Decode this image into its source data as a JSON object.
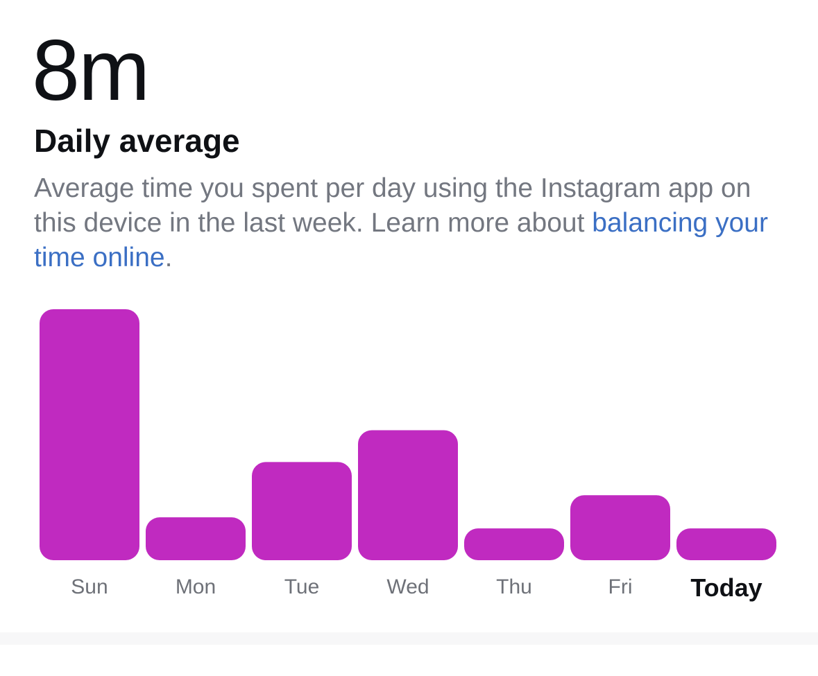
{
  "summary": {
    "value": "8m",
    "label": "Daily average",
    "description_prefix": "Average time you spent per day using the Instagram app on this device in the last week. Learn more about ",
    "link_text": "balancing your time online",
    "description_suffix": "."
  },
  "colors": {
    "bar": "#c02ac0",
    "label": "#6e7178",
    "today_label": "#0f1115",
    "link": "#3b6fc4"
  },
  "chart_data": {
    "type": "bar",
    "categories": [
      "Sun",
      "Mon",
      "Tue",
      "Wed",
      "Thu",
      "Fri",
      "Today"
    ],
    "values": [
      363,
      62,
      142,
      188,
      46,
      94,
      46
    ],
    "ylim": [
      0,
      363
    ],
    "highlight_category": "Today"
  }
}
